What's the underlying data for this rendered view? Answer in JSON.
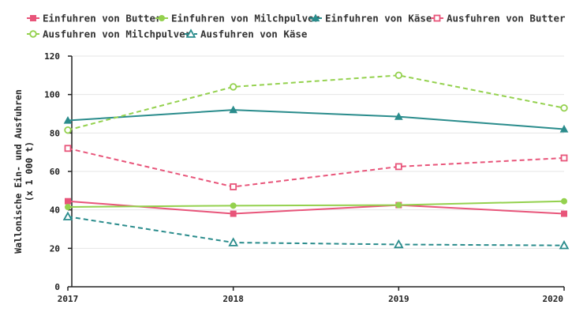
{
  "chart_data": {
    "type": "line",
    "title": "",
    "ylabel_lines": [
      "Wallonische Ein- und Ausfuhren",
      "(x 1 000 t)"
    ],
    "xlabel": "",
    "x": [
      "2017",
      "2018",
      "2019",
      "2020"
    ],
    "yticks": [
      "0",
      "20",
      "40",
      "60",
      "80",
      "100",
      "120"
    ],
    "ylim": [
      0,
      120
    ],
    "grid": true,
    "legend_position": "top",
    "series": [
      {
        "name": "Einfuhren von Butter",
        "values": [
          44.5,
          38,
          42.5,
          38
        ],
        "color": "#e8557a",
        "dashed": false,
        "marker": "square-filled"
      },
      {
        "name": "Einfuhren von Milchpulver",
        "values": [
          41.5,
          42.2,
          42.5,
          44.5
        ],
        "color": "#94d14e",
        "dashed": false,
        "marker": "circle-filled"
      },
      {
        "name": "Einfuhren von Käse",
        "values": [
          86.5,
          92,
          88.5,
          82
        ],
        "color": "#2a8c8c",
        "dashed": false,
        "marker": "triangle-filled"
      },
      {
        "name": "Ausfuhren von Butter",
        "values": [
          72,
          52,
          62.5,
          67
        ],
        "color": "#e8557a",
        "dashed": true,
        "marker": "square-open"
      },
      {
        "name": "Ausfuhren von Milchpulver",
        "values": [
          81.5,
          104,
          110,
          93
        ],
        "color": "#94d14e",
        "dashed": true,
        "marker": "circle-open"
      },
      {
        "name": "Ausfuhren von Käse",
        "values": [
          36.5,
          23,
          22,
          21.5
        ],
        "color": "#2a8c8c",
        "dashed": true,
        "marker": "triangle-open"
      }
    ]
  }
}
